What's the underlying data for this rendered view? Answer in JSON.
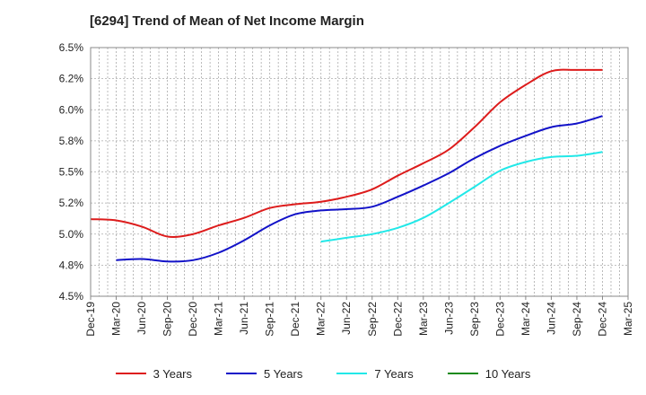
{
  "chart_data": {
    "type": "line",
    "title": "[6294]  Trend of Mean of Net Income Margin",
    "xlabel": "",
    "ylabel": "",
    "ylim": [
      4.5,
      6.5
    ],
    "y_ticks": [
      "4.5%",
      "4.8%",
      "5.0%",
      "5.2%",
      "5.5%",
      "5.8%",
      "6.0%",
      "6.2%",
      "6.5%"
    ],
    "x_ticks": [
      "Dec-19",
      "Mar-20",
      "Jun-20",
      "Sep-20",
      "Dec-20",
      "Mar-21",
      "Jun-21",
      "Sep-21",
      "Dec-21",
      "Mar-22",
      "Jun-22",
      "Sep-22",
      "Dec-22",
      "Mar-23",
      "Jun-23",
      "Sep-23",
      "Dec-23",
      "Mar-24",
      "Jun-24",
      "Sep-24",
      "Dec-24",
      "Mar-25"
    ],
    "grid": true,
    "legend_position": "bottom",
    "series": [
      {
        "name": "3 Years",
        "color": "#dd1c1c",
        "points": [
          [
            "Dec-19",
            5.12
          ],
          [
            "Mar-20",
            5.11
          ],
          [
            "Jun-20",
            5.06
          ],
          [
            "Sep-20",
            4.98
          ],
          [
            "Dec-20",
            5.0
          ],
          [
            "Mar-21",
            5.07
          ],
          [
            "Jun-21",
            5.13
          ],
          [
            "Sep-21",
            5.21
          ],
          [
            "Dec-21",
            5.24
          ],
          [
            "Mar-22",
            5.26
          ],
          [
            "Jun-22",
            5.3
          ],
          [
            "Sep-22",
            5.36
          ],
          [
            "Dec-22",
            5.47
          ],
          [
            "Mar-23",
            5.57
          ],
          [
            "Jun-23",
            5.68
          ],
          [
            "Sep-23",
            5.86
          ],
          [
            "Dec-23",
            6.06
          ],
          [
            "Mar-24",
            6.2
          ],
          [
            "Jun-24",
            6.31
          ],
          [
            "Sep-24",
            6.32
          ],
          [
            "Dec-24",
            6.32
          ]
        ]
      },
      {
        "name": "5 Years",
        "color": "#1212c8",
        "points": [
          [
            "Mar-20",
            4.79
          ],
          [
            "Jun-20",
            4.8
          ],
          [
            "Sep-20",
            4.78
          ],
          [
            "Dec-20",
            4.79
          ],
          [
            "Mar-21",
            4.85
          ],
          [
            "Jun-21",
            4.95
          ],
          [
            "Sep-21",
            5.07
          ],
          [
            "Dec-21",
            5.16
          ],
          [
            "Mar-22",
            5.19
          ],
          [
            "Jun-22",
            5.2
          ],
          [
            "Sep-22",
            5.22
          ],
          [
            "Dec-22",
            5.3
          ],
          [
            "Mar-23",
            5.39
          ],
          [
            "Jun-23",
            5.49
          ],
          [
            "Sep-23",
            5.61
          ],
          [
            "Dec-23",
            5.71
          ],
          [
            "Mar-24",
            5.79
          ],
          [
            "Jun-24",
            5.86
          ],
          [
            "Sep-24",
            5.89
          ],
          [
            "Dec-24",
            5.95
          ]
        ]
      },
      {
        "name": "7 Years",
        "color": "#22e8e8",
        "points": [
          [
            "Mar-22",
            4.94
          ],
          [
            "Jun-22",
            4.97
          ],
          [
            "Sep-22",
            5.0
          ],
          [
            "Dec-22",
            5.05
          ],
          [
            "Mar-23",
            5.13
          ],
          [
            "Jun-23",
            5.25
          ],
          [
            "Sep-23",
            5.38
          ],
          [
            "Dec-23",
            5.51
          ],
          [
            "Mar-24",
            5.58
          ],
          [
            "Jun-24",
            5.62
          ],
          [
            "Sep-24",
            5.63
          ],
          [
            "Dec-24",
            5.66
          ]
        ]
      },
      {
        "name": "10 Years",
        "color": "#1a8a1a",
        "points": []
      }
    ]
  }
}
